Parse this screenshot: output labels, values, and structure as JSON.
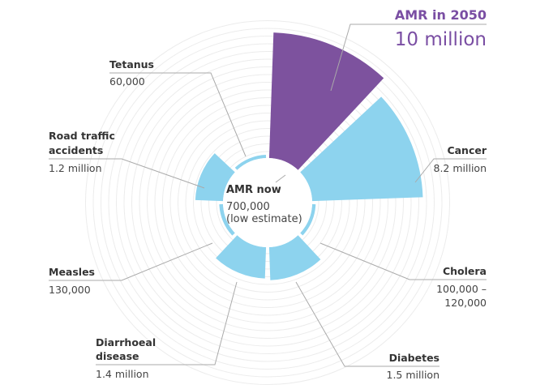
{
  "chart_data": {
    "type": "radial-bar",
    "title": "",
    "colors": {
      "highlight": "#7d529e",
      "series": "#8dd3ee",
      "leader": "#aaaaaa",
      "grid": "#ececec"
    },
    "center": {
      "name": "AMR now",
      "value_line1": "700,000",
      "value_line2": "(low estimate)",
      "value": 700000
    },
    "categories": [
      {
        "name": "AMR in 2050",
        "value_label": "10 million",
        "value": 10000000,
        "highlight": true
      },
      {
        "name": "Cancer",
        "value_label": "8.2 million",
        "value": 8200000
      },
      {
        "name": "Cholera",
        "value_label_line1": "100,000 –",
        "value_label_line2": "120,000",
        "value": 120000
      },
      {
        "name": "Diabetes",
        "value_label": "1.5 million",
        "value": 1500000
      },
      {
        "name": "Diarrhoeal disease",
        "name_line1": "Diarrhoeal",
        "name_line2": "disease",
        "value_label": "1.4 million",
        "value": 1400000
      },
      {
        "name": "Measles",
        "value_label": "130,000",
        "value": 130000
      },
      {
        "name": "Road traffic accidents",
        "name_line1": "Road traffic",
        "name_line2": "accidents",
        "value_label": "1.2 million",
        "value": 1200000
      },
      {
        "name": "Tetanus",
        "value_label": "60,000",
        "value": 60000
      }
    ]
  }
}
